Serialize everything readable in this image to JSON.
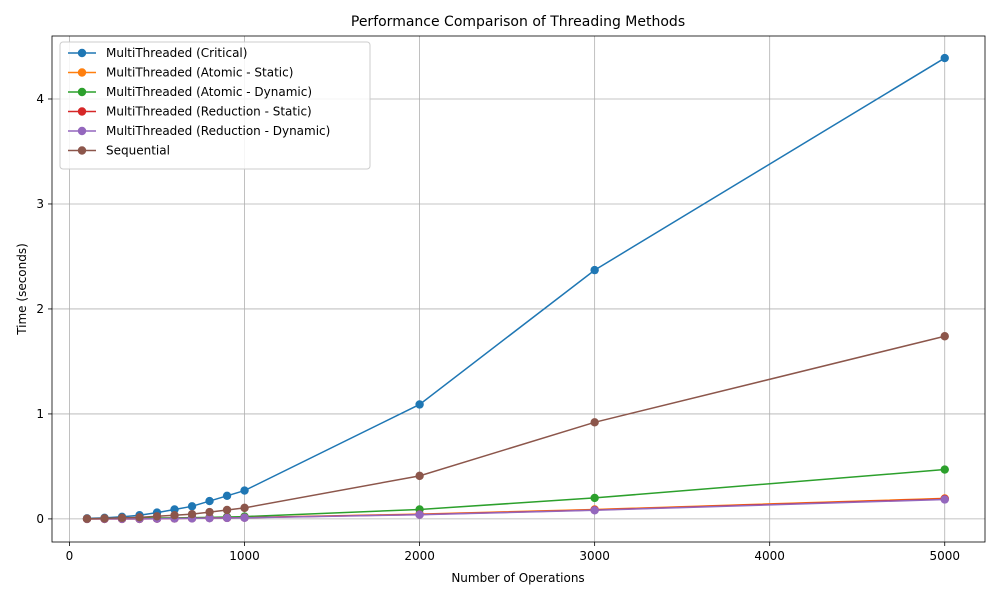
{
  "chart_data": {
    "type": "line",
    "title": "Performance Comparison of Threading Methods",
    "xlabel": "Number of Operations",
    "ylabel": "Time (seconds)",
    "xlim": [
      -100,
      5230
    ],
    "ylim": [
      -0.22,
      4.6
    ],
    "xticks": [
      0,
      1000,
      2000,
      3000,
      4000,
      5000
    ],
    "yticks": [
      0,
      1,
      2,
      3,
      4
    ],
    "grid": true,
    "legend_position": "top-left",
    "x": [
      100,
      200,
      300,
      400,
      500,
      600,
      700,
      800,
      900,
      1000,
      2000,
      3000,
      5000
    ],
    "series": [
      {
        "name": "MultiThreaded (Critical)",
        "color": "#1f77b4",
        "values": [
          0.005,
          0.01,
          0.02,
          0.035,
          0.06,
          0.09,
          0.12,
          0.17,
          0.22,
          0.27,
          1.09,
          2.37,
          4.39
        ]
      },
      {
        "name": "MultiThreaded (Atomic - Static)",
        "color": "#ff7f0e",
        "values": [
          0.0,
          0.0,
          0.0,
          0.0,
          0.003,
          0.005,
          0.007,
          0.009,
          0.011,
          0.013,
          0.045,
          0.09,
          0.195
        ]
      },
      {
        "name": "MultiThreaded (Atomic - Dynamic)",
        "color": "#2ca02c",
        "values": [
          0.0,
          0.002,
          0.004,
          0.006,
          0.008,
          0.01,
          0.012,
          0.015,
          0.018,
          0.022,
          0.09,
          0.2,
          0.47
        ]
      },
      {
        "name": "MultiThreaded (Reduction - Static)",
        "color": "#d62728",
        "values": [
          0.0,
          0.0,
          0.0,
          0.0,
          0.002,
          0.004,
          0.006,
          0.008,
          0.01,
          0.012,
          0.042,
          0.085,
          0.19
        ]
      },
      {
        "name": "MultiThreaded (Reduction - Dynamic)",
        "color": "#9467bd",
        "values": [
          0.0,
          0.0,
          0.0,
          0.0,
          0.002,
          0.004,
          0.005,
          0.007,
          0.009,
          0.011,
          0.04,
          0.082,
          0.185
        ]
      },
      {
        "name": "Sequential",
        "color": "#8c564b",
        "values": [
          0.002,
          0.005,
          0.01,
          0.015,
          0.025,
          0.035,
          0.045,
          0.065,
          0.085,
          0.105,
          0.41,
          0.92,
          1.74
        ]
      }
    ]
  }
}
